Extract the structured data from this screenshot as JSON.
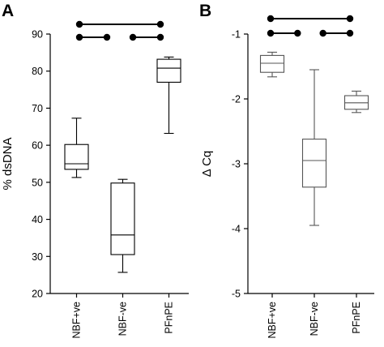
{
  "chart_data": [
    {
      "type": "box",
      "panel_label": "A",
      "ylabel": "% dsDNA",
      "ylim": [
        20,
        90
      ],
      "yticks": [
        20,
        30,
        40,
        50,
        60,
        70,
        80,
        90
      ],
      "categories": [
        "NBF+ve",
        "NBF-ve",
        "PFnPE"
      ],
      "boxes": [
        {
          "category": "NBF+ve",
          "min": 51.3,
          "q1": 53.5,
          "median": 55,
          "q3": 60.2,
          "max": 67.3
        },
        {
          "category": "NBF-ve",
          "min": 25.7,
          "q1": 30.5,
          "median": 35.8,
          "q3": 49.8,
          "max": 50.8
        },
        {
          "category": "PFnPE",
          "min": 63.2,
          "q1": 77,
          "median": 80.8,
          "q3": 83.2,
          "max": 83.8
        }
      ],
      "significance": [
        {
          "from": "NBF+ve",
          "to": "PFnPE"
        },
        {
          "from": "NBF+ve",
          "to": "NBF-ve"
        },
        {
          "from": "NBF-ve",
          "to": "PFnPE"
        }
      ],
      "grid": false,
      "box_color": "#000000"
    },
    {
      "type": "box",
      "panel_label": "B",
      "ylabel": "Δ Cq",
      "ylim": [
        -5,
        -1
      ],
      "yticks": [
        -5,
        -4,
        -3,
        -2,
        -1
      ],
      "categories": [
        "NBF+ve",
        "NBF-ve",
        "PFnPE"
      ],
      "boxes": [
        {
          "category": "NBF+ve",
          "min": -1.66,
          "q1": -1.59,
          "median": -1.45,
          "q3": -1.33,
          "max": -1.28
        },
        {
          "category": "NBF-ve",
          "min": -3.95,
          "q1": -3.36,
          "median": -2.95,
          "q3": -2.62,
          "max": -1.55
        },
        {
          "category": "PFnPE",
          "min": -2.21,
          "q1": -2.16,
          "median": -2.06,
          "q3": -1.95,
          "max": -1.88
        }
      ],
      "significance": [
        {
          "from": "NBF+ve",
          "to": "PFnPE"
        },
        {
          "from": "NBF+ve",
          "to": "NBF-ve"
        },
        {
          "from": "NBF-ve",
          "to": "PFnPE"
        }
      ],
      "grid": false,
      "box_color": "#555555"
    }
  ]
}
